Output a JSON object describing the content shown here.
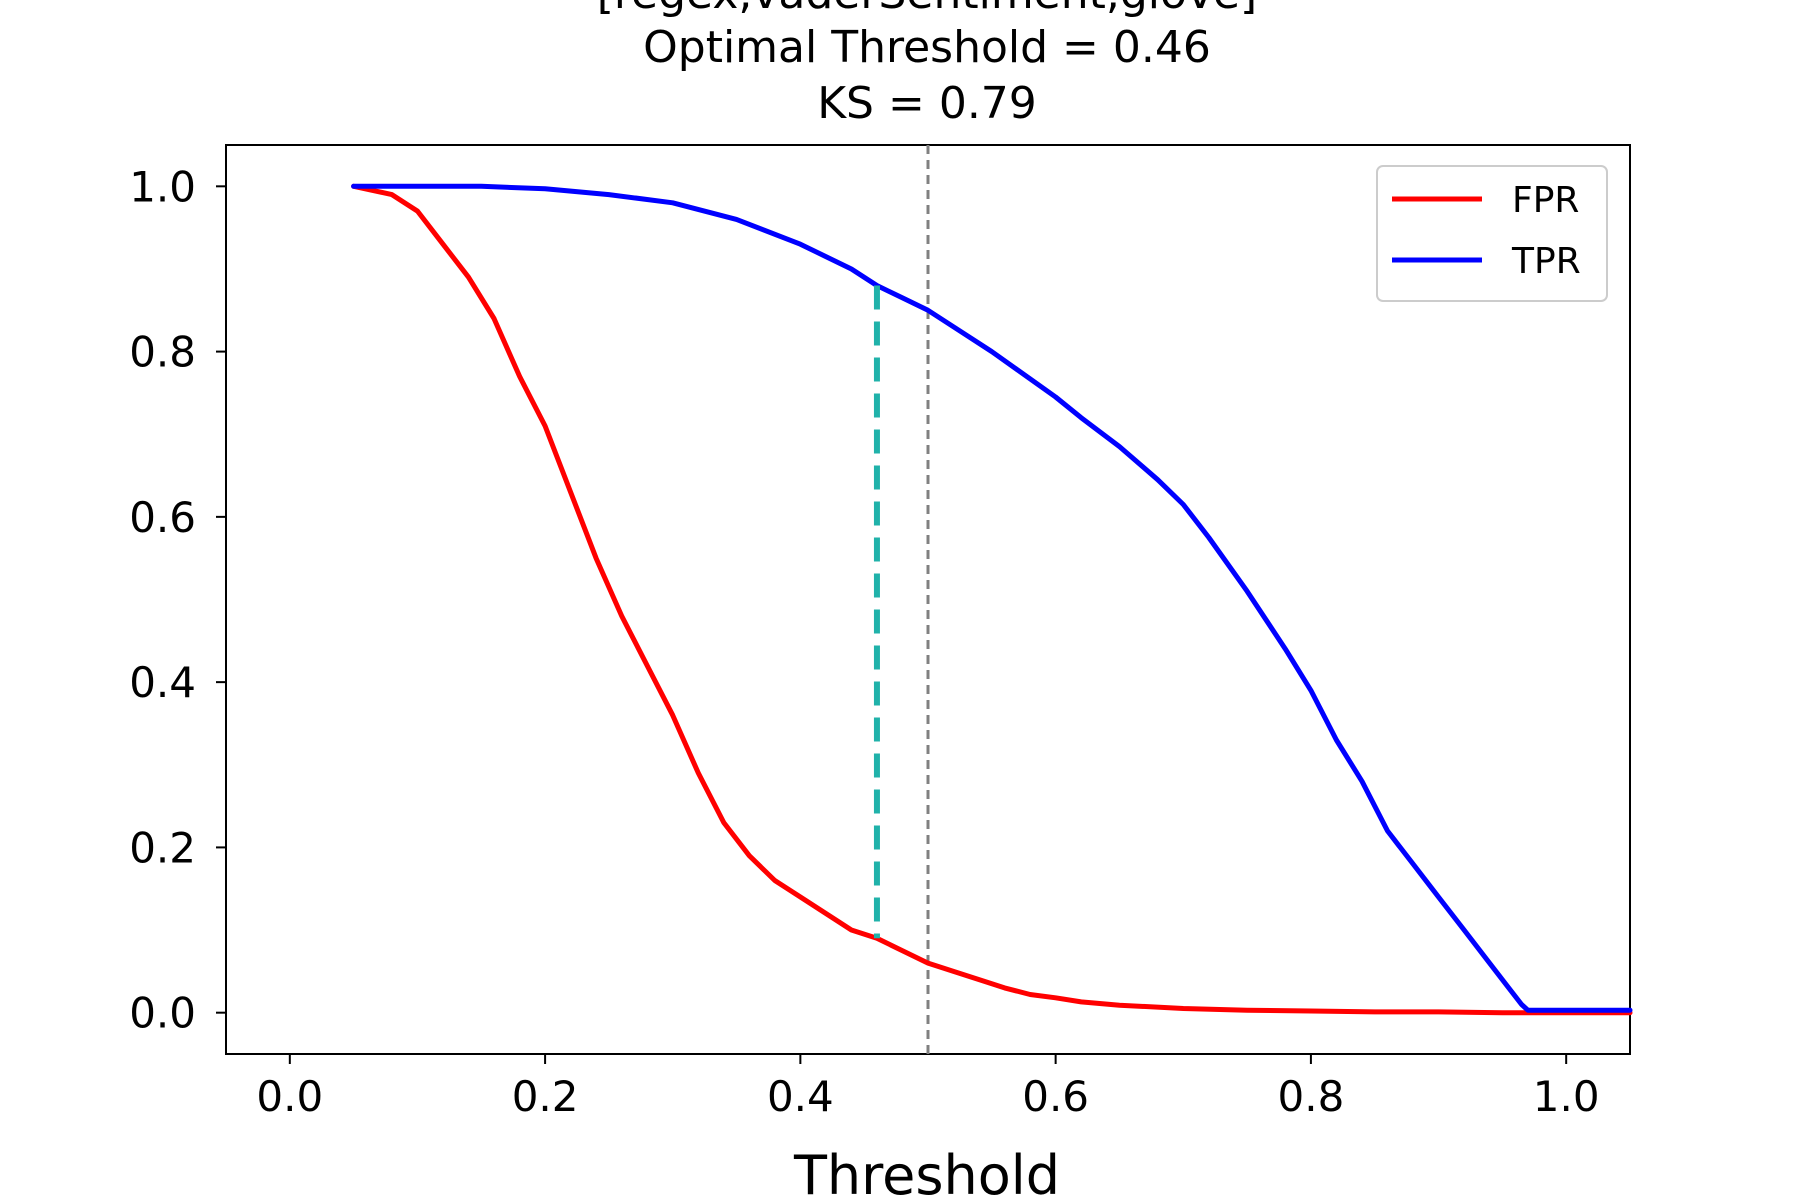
{
  "chart_data": {
    "type": "line",
    "title_lines": [
      "[regex,vaderSentiment,glove]",
      "Optimal Threshold = 0.46",
      "KS = 0.79"
    ],
    "xlabel": "Threshold",
    "ylabel": "",
    "xlim": [
      -0.05,
      1.05
    ],
    "ylim": [
      -0.05,
      1.05
    ],
    "x_ticks": [
      0.0,
      0.2,
      0.4,
      0.6,
      0.8,
      1.0
    ],
    "x_tick_labels": [
      "0.0",
      "0.2",
      "0.4",
      "0.6",
      "0.8",
      "1.0"
    ],
    "y_ticks": [
      0.0,
      0.2,
      0.4,
      0.6,
      0.8,
      1.0
    ],
    "y_tick_labels": [
      "0.0",
      "0.2",
      "0.4",
      "0.6",
      "0.8",
      "1.0"
    ],
    "grid": false,
    "legend_position": "top-right",
    "series": [
      {
        "name": "FPR",
        "color": "#ff0000",
        "x": [
          0.05,
          0.08,
          0.1,
          0.12,
          0.14,
          0.16,
          0.18,
          0.2,
          0.22,
          0.24,
          0.26,
          0.28,
          0.3,
          0.32,
          0.34,
          0.36,
          0.38,
          0.4,
          0.42,
          0.44,
          0.46,
          0.48,
          0.5,
          0.52,
          0.54,
          0.56,
          0.58,
          0.6,
          0.62,
          0.65,
          0.7,
          0.75,
          0.8,
          0.85,
          0.9,
          0.95,
          1.0,
          1.05
        ],
        "y": [
          1.0,
          0.99,
          0.97,
          0.93,
          0.89,
          0.84,
          0.77,
          0.71,
          0.63,
          0.55,
          0.48,
          0.42,
          0.36,
          0.29,
          0.23,
          0.19,
          0.16,
          0.14,
          0.12,
          0.1,
          0.09,
          0.075,
          0.06,
          0.05,
          0.04,
          0.03,
          0.022,
          0.018,
          0.013,
          0.009,
          0.005,
          0.003,
          0.002,
          0.001,
          0.001,
          0.0,
          0.0,
          0.0
        ]
      },
      {
        "name": "TPR",
        "color": "#0000ff",
        "x": [
          0.05,
          0.1,
          0.15,
          0.2,
          0.25,
          0.3,
          0.35,
          0.4,
          0.42,
          0.44,
          0.46,
          0.48,
          0.5,
          0.52,
          0.55,
          0.6,
          0.62,
          0.65,
          0.68,
          0.7,
          0.72,
          0.75,
          0.78,
          0.8,
          0.82,
          0.84,
          0.86,
          0.88,
          0.9,
          0.92,
          0.94,
          0.955,
          0.965,
          0.97,
          1.0,
          1.05
        ],
        "y": [
          1.0,
          1.0,
          1.0,
          0.997,
          0.99,
          0.98,
          0.96,
          0.93,
          0.915,
          0.9,
          0.88,
          0.865,
          0.85,
          0.83,
          0.8,
          0.745,
          0.72,
          0.685,
          0.645,
          0.615,
          0.575,
          0.51,
          0.44,
          0.39,
          0.33,
          0.28,
          0.22,
          0.18,
          0.14,
          0.1,
          0.06,
          0.03,
          0.01,
          0.003,
          0.003,
          0.003
        ]
      }
    ],
    "optimal_line": {
      "x": 0.46,
      "y_low": 0.09,
      "y_high": 0.88,
      "color": "#20b2aa",
      "style": "dashed"
    },
    "reference_line": {
      "x": 0.5,
      "color": "#808080",
      "style": "dashed"
    }
  }
}
